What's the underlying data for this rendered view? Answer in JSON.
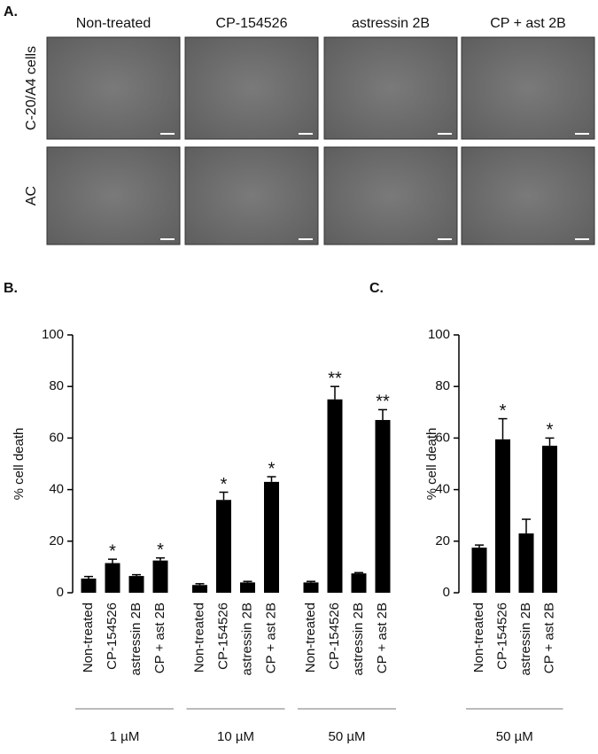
{
  "panel_a": {
    "label": "A.",
    "columns": [
      "Non-treated",
      "CP-154526",
      "astressin 2B",
      "CP + ast 2B"
    ],
    "rows": [
      "C-20/A4 cells",
      "AC"
    ]
  },
  "chart_data": [
    {
      "type": "bar",
      "panel": "B.",
      "ylabel": "% cell death",
      "ylim": [
        0,
        100
      ],
      "yticks": [
        0,
        20,
        40,
        60,
        80,
        100
      ],
      "color": "#000000",
      "groups": [
        {
          "name": "1 µM",
          "categories": [
            "Non-treated",
            "CP-154526",
            "astressin 2B",
            "CP + ast 2B"
          ],
          "values": [
            5.5,
            11.5,
            6.5,
            12.5
          ],
          "errors": [
            0.8,
            1.5,
            0.5,
            1.0
          ],
          "significance": [
            null,
            "*",
            null,
            "*"
          ]
        },
        {
          "name": "10 µM",
          "categories": [
            "Non-treated",
            "CP-154526",
            "astressin 2B",
            "CP + ast 2B"
          ],
          "values": [
            3,
            36,
            4,
            43
          ],
          "errors": [
            0.5,
            3,
            0.4,
            2
          ],
          "significance": [
            null,
            "*",
            null,
            "*"
          ]
        },
        {
          "name": "50 µM",
          "categories": [
            "Non-treated",
            "CP-154526",
            "astressin 2B",
            "CP + ast 2B"
          ],
          "values": [
            4,
            75,
            7.5,
            67
          ],
          "errors": [
            0.4,
            5,
            0.3,
            4
          ],
          "significance": [
            null,
            "**",
            null,
            "**"
          ]
        }
      ]
    },
    {
      "type": "bar",
      "panel": "C.",
      "ylabel": "% cell death",
      "ylim": [
        0,
        100
      ],
      "yticks": [
        0,
        20,
        40,
        60,
        80,
        100
      ],
      "color": "#000000",
      "groups": [
        {
          "name": "50 µM",
          "categories": [
            "Non-treated",
            "CP-154526",
            "astressin 2B",
            "CP + ast 2B"
          ],
          "values": [
            17.5,
            59.5,
            23,
            57
          ],
          "errors": [
            1,
            8,
            5.5,
            3
          ],
          "significance": [
            null,
            "*",
            null,
            "*"
          ]
        }
      ]
    }
  ]
}
